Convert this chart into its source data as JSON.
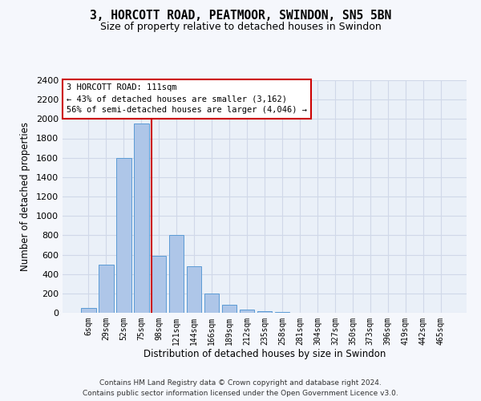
{
  "title_line1": "3, HORCOTT ROAD, PEATMOOR, SWINDON, SN5 5BN",
  "title_line2": "Size of property relative to detached houses in Swindon",
  "xlabel": "Distribution of detached houses by size in Swindon",
  "ylabel": "Number of detached properties",
  "categories": [
    "6sqm",
    "29sqm",
    "52sqm",
    "75sqm",
    "98sqm",
    "121sqm",
    "144sqm",
    "166sqm",
    "189sqm",
    "212sqm",
    "235sqm",
    "258sqm",
    "281sqm",
    "304sqm",
    "327sqm",
    "350sqm",
    "373sqm",
    "396sqm",
    "419sqm",
    "442sqm",
    "465sqm"
  ],
  "values": [
    50,
    500,
    1600,
    1950,
    590,
    800,
    480,
    200,
    80,
    30,
    20,
    10,
    0,
    0,
    0,
    0,
    0,
    0,
    0,
    0,
    0
  ],
  "bar_color": "#aec6e8",
  "bar_edge_color": "#5b9bd5",
  "vline_color": "#cc0000",
  "vline_pos": 3.57,
  "annotation_text": "3 HORCOTT ROAD: 111sqm\n← 43% of detached houses are smaller (3,162)\n56% of semi-detached houses are larger (4,046) →",
  "annotation_box_color": "#ffffff",
  "annotation_box_edge": "#cc0000",
  "ylim": [
    0,
    2400
  ],
  "yticks": [
    0,
    200,
    400,
    600,
    800,
    1000,
    1200,
    1400,
    1600,
    1800,
    2000,
    2200,
    2400
  ],
  "grid_color": "#d0d8e8",
  "background_color": "#eaf0f8",
  "fig_background": "#f5f7fc",
  "footer_line1": "Contains HM Land Registry data © Crown copyright and database right 2024.",
  "footer_line2": "Contains public sector information licensed under the Open Government Licence v3.0."
}
